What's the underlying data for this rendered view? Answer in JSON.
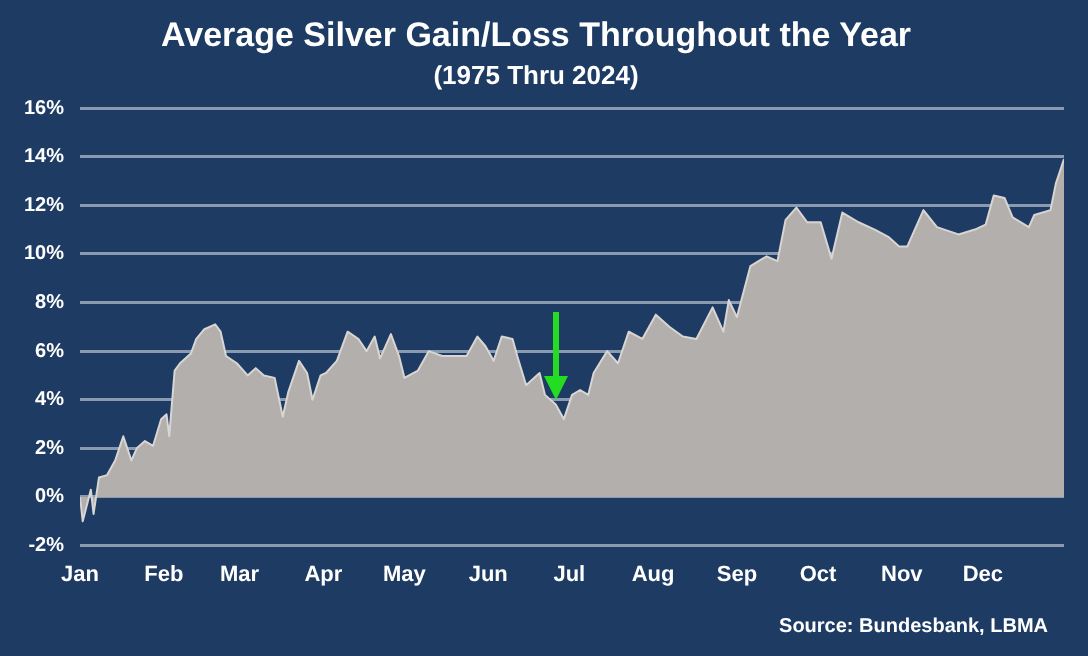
{
  "chart_data": {
    "type": "area",
    "title": "Average Silver Gain/Loss Throughout the Year",
    "subtitle": "(1975 Thru 2024)",
    "annotations": [
      "Source: Bundesbank, LBMA"
    ],
    "x": [
      "--01-01",
      "--01-02",
      "--01-05",
      "--01-06",
      "--01-08",
      "--01-11",
      "--01-14",
      "--01-17",
      "--01-20",
      "--01-22",
      "--01-25",
      "--01-28",
      "--01-31",
      "--02-02",
      "--02-03",
      "--02-05",
      "--02-07",
      "--02-11",
      "--02-13",
      "--02-16",
      "--02-20",
      "--02-22",
      "--02-24",
      "--02-28",
      "--03-04",
      "--03-07",
      "--03-10",
      "--03-14",
      "--03-17",
      "--03-19",
      "--03-23",
      "--03-26",
      "--03-28",
      "--03-31",
      "--04-02",
      "--04-06",
      "--04-10",
      "--04-14",
      "--04-17",
      "--04-20",
      "--04-22",
      "--04-26",
      "--04-29",
      "--05-01",
      "--05-06",
      "--05-10",
      "--05-15",
      "--05-24",
      "--05-28",
      "--05-31",
      "--06-03",
      "--06-06",
      "--06-10",
      "--06-12",
      "--06-15",
      "--06-20",
      "--06-22",
      "--06-26",
      "--06-29",
      "--07-02",
      "--07-05",
      "--07-08",
      "--07-10",
      "--07-15",
      "--07-19",
      "--07-23",
      "--07-28",
      "--08-02",
      "--08-07",
      "--08-12",
      "--08-17",
      "--08-23",
      "--08-27",
      "--08-29",
      "--09-01",
      "--09-06",
      "--09-09",
      "--09-12",
      "--09-16",
      "--09-19",
      "--09-23",
      "--09-27",
      "--10-02",
      "--10-06",
      "--10-10",
      "--10-16",
      "--10-22",
      "--10-27",
      "--10-31",
      "--11-03",
      "--11-09",
      "--11-14",
      "--11-22",
      "--11-28",
      "--12-02",
      "--12-05",
      "--12-09",
      "--12-12",
      "--12-18",
      "--12-20",
      "--12-26",
      "--12-28",
      "--12-31"
    ],
    "series": [
      {
        "color": "#b3afac",
        "values": [
          0,
          -1.0,
          0.3,
          -0.7,
          0.8,
          0.9,
          1.5,
          2.5,
          1.5,
          2.0,
          2.3,
          2.1,
          3.2,
          3.4,
          2.5,
          5.2,
          5.5,
          5.9,
          6.5,
          6.9,
          7.1,
          6.8,
          5.8,
          5.5,
          5.0,
          5.3,
          5.0,
          4.9,
          3.3,
          4.3,
          5.6,
          5.1,
          4.0,
          5.0,
          5.1,
          5.6,
          6.8,
          6.5,
          6.0,
          6.6,
          5.7,
          6.7,
          5.8,
          4.9,
          5.2,
          6.0,
          5.8,
          5.8,
          6.6,
          6.2,
          5.6,
          6.6,
          6.5,
          5.7,
          4.6,
          5.1,
          4.2,
          3.8,
          3.2,
          4.2,
          4.4,
          4.2,
          5.1,
          6.0,
          5.5,
          6.8,
          6.5,
          7.5,
          7.0,
          6.6,
          6.5,
          7.8,
          6.8,
          8.1,
          7.4,
          9.5,
          9.7,
          9.9,
          9.7,
          11.4,
          11.9,
          11.3,
          11.3,
          9.8,
          11.7,
          11.3,
          11.0,
          10.7,
          10.3,
          10.3,
          11.8,
          11.1,
          10.8,
          11.0,
          11.2,
          12.4,
          12.3,
          11.5,
          11.1,
          11.6,
          11.8,
          12.9,
          13.9
        ]
      }
    ],
    "xlim": [
      "--01-01",
      "--12-31"
    ],
    "xticks": [
      {
        "value": "--01-01",
        "label": "Jan"
      },
      {
        "value": "--02-01",
        "label": "Feb"
      },
      {
        "value": "--03-01",
        "label": "Mar"
      },
      {
        "value": "--04-01",
        "label": "Apr"
      },
      {
        "value": "--05-01",
        "label": "May"
      },
      {
        "value": "--06-01",
        "label": "Jun"
      },
      {
        "value": "--07-01",
        "label": "Jul"
      },
      {
        "value": "--08-01",
        "label": "Aug"
      },
      {
        "value": "--09-01",
        "label": "Sep"
      },
      {
        "value": "--10-01",
        "label": "Oct"
      },
      {
        "value": "--11-01",
        "label": "Nov"
      },
      {
        "value": "--12-01",
        "label": "Dec"
      }
    ],
    "ylim": [
      -2,
      16
    ],
    "yticks": [
      {
        "value": -2,
        "label": "-2%"
      },
      {
        "value": 0,
        "label": "0%"
      },
      {
        "value": 2,
        "label": "2%"
      },
      {
        "value": 4,
        "label": "4%"
      },
      {
        "value": 6,
        "label": "6%"
      },
      {
        "value": 8,
        "label": "8%"
      },
      {
        "value": 10,
        "label": "10%"
      },
      {
        "value": 12,
        "label": "12%"
      },
      {
        "value": 14,
        "label": "14%"
      },
      {
        "value": 16,
        "label": "16%"
      }
    ],
    "grid": "y",
    "legend": false
  }
}
